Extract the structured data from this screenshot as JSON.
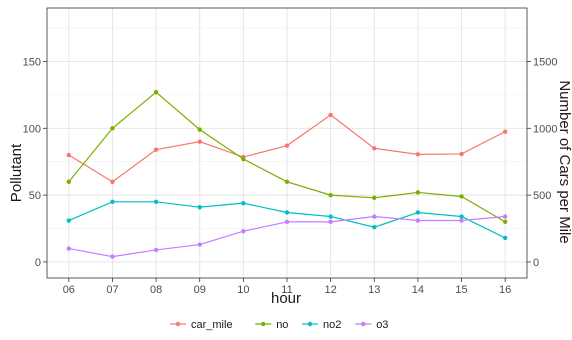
{
  "chart_data": {
    "type": "line",
    "xlabel": "hour",
    "ylabel": "Pollutant",
    "y2label": "Number of Cars per Mile",
    "categories": [
      "06",
      "07",
      "08",
      "09",
      "10",
      "11",
      "12",
      "13",
      "14",
      "15",
      "16"
    ],
    "ylim": [
      -12,
      190
    ],
    "y_ticks": [
      0,
      50,
      100,
      150
    ],
    "y2_ticks": [
      0,
      500,
      1000,
      1500
    ],
    "y2_scale": 10,
    "grid": true,
    "legend_position": "bottom",
    "series": [
      {
        "name": "car_mile",
        "axis": "right",
        "color": "#F8766D",
        "values": [
          800,
          600,
          840,
          900,
          785,
          870,
          1100,
          850,
          805,
          808,
          975
        ]
      },
      {
        "name": "no",
        "axis": "left",
        "color": "#7CAE00",
        "values": [
          60,
          100,
          127,
          99,
          77,
          60,
          50,
          48,
          52,
          49,
          30
        ]
      },
      {
        "name": "no2",
        "axis": "left",
        "color": "#00BFC4",
        "values": [
          31,
          45,
          45,
          41,
          44,
          37,
          34,
          26,
          37,
          34,
          18
        ]
      },
      {
        "name": "o3",
        "axis": "left",
        "color": "#C77CFF",
        "values": [
          10,
          4,
          9,
          13,
          23,
          30,
          30,
          34,
          31,
          31,
          34
        ]
      }
    ]
  }
}
